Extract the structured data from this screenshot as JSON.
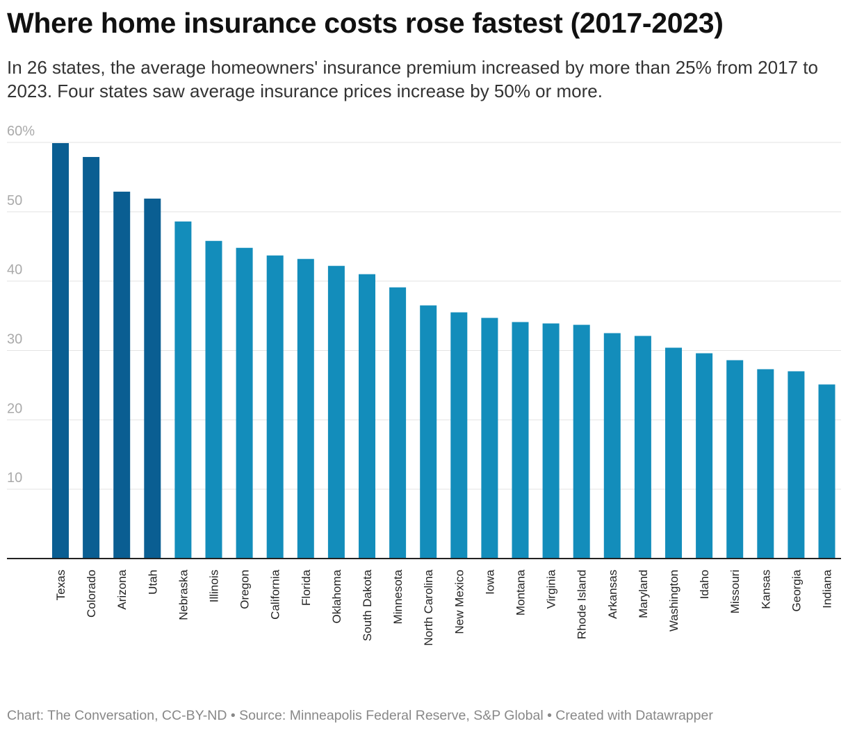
{
  "title": "Where home insurance costs rose fastest (2017-2023)",
  "subtitle": "In 26 states, the average homeowners' insurance premium increased by more than 25% from 2017 to 2023. Four states saw average insurance prices increase by 50% or more.",
  "footer": "Chart: The Conversation, CC-BY-ND • Source: Minneapolis Federal Reserve, S&P Global • Created with Datawrapper",
  "colors": {
    "highlight": "#0a5e92",
    "default": "#138dbb",
    "grid": "#e3e3e3",
    "baseline": "#222222"
  },
  "chart_data": {
    "type": "bar",
    "categories": [
      "Texas",
      "Colorado",
      "Arizona",
      "Utah",
      "Nebraska",
      "Illinois",
      "Oregon",
      "California",
      "Florida",
      "Oklahoma",
      "South Dakota",
      "Minnesota",
      "North Carolina",
      "New Mexico",
      "Iowa",
      "Montana",
      "Virginia",
      "Rhode Island",
      "Arkansas",
      "Maryland",
      "Washington",
      "Idaho",
      "Missouri",
      "Kansas",
      "Georgia",
      "Indiana"
    ],
    "values": [
      59.9,
      57.9,
      52.9,
      51.9,
      48.6,
      45.8,
      44.8,
      43.7,
      43.2,
      42.2,
      41.0,
      39.1,
      36.5,
      35.5,
      34.7,
      34.1,
      33.9,
      33.7,
      32.5,
      32.1,
      30.4,
      29.6,
      28.6,
      27.3,
      27.0,
      25.1
    ],
    "highlighted": [
      "Texas",
      "Colorado",
      "Arizona",
      "Utah"
    ],
    "ylim": [
      0,
      60
    ],
    "yticks": [
      10,
      20,
      30,
      40,
      50,
      60
    ],
    "ytick_labels": [
      "10",
      "20",
      "30",
      "40",
      "50",
      "60%"
    ],
    "grid": true,
    "xlabel": "",
    "ylabel": ""
  }
}
